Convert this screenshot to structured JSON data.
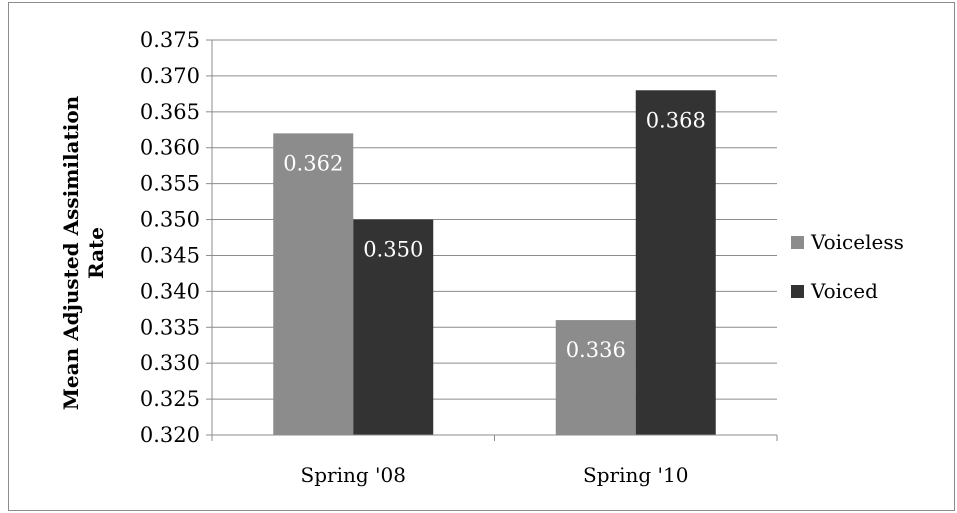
{
  "chart_data": {
    "type": "bar",
    "title": "",
    "ylabel_lines": [
      "Mean Adjusted Assimilation",
      "Rate"
    ],
    "xlabel": "",
    "categories": [
      "Spring '08",
      "Spring '10"
    ],
    "series": [
      {
        "name": "Voiceless",
        "values": [
          0.362,
          0.336
        ],
        "labels": [
          "0.362",
          "0.336"
        ],
        "color": "#8c8c8c"
      },
      {
        "name": "Voiced",
        "values": [
          0.35,
          0.368
        ],
        "labels": [
          "0.350",
          "0.368"
        ],
        "color": "#333333"
      }
    ],
    "ylim": [
      0.32,
      0.375
    ],
    "ytick_step": 0.005,
    "ytick_labels": [
      "0.320",
      "0.325",
      "0.330",
      "0.335",
      "0.340",
      "0.345",
      "0.350",
      "0.355",
      "0.360",
      "0.365",
      "0.370",
      "0.375"
    ],
    "grid": true,
    "legend_position": "right"
  }
}
